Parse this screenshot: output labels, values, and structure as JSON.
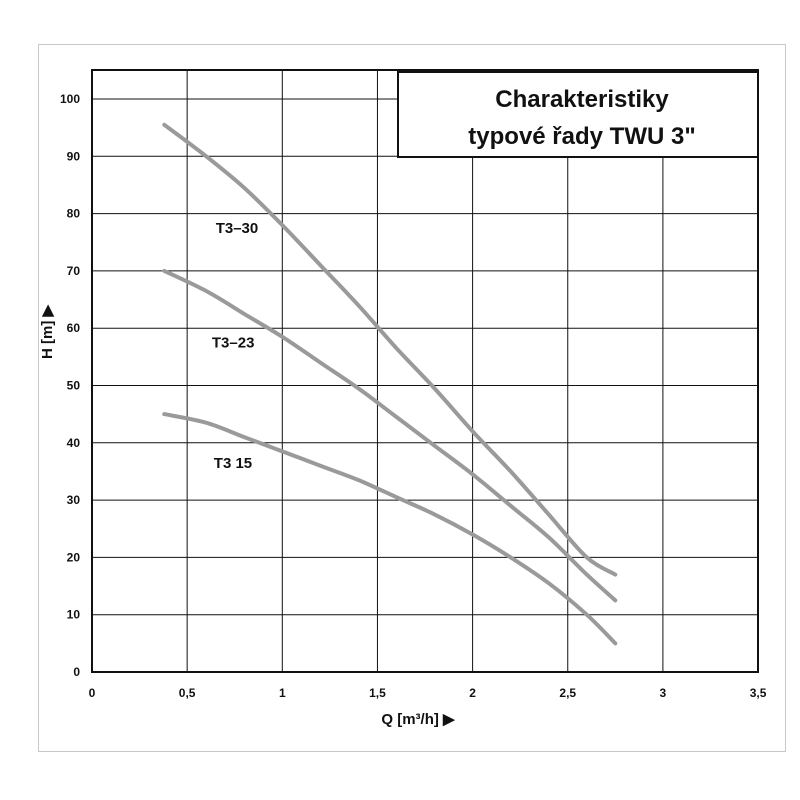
{
  "chart_data": {
    "type": "line",
    "title_lines": [
      "Charakteristiky",
      "typové řady TWU 3\""
    ],
    "xlabel": "Q [m³/h] ▶",
    "ylabel": "H [m] ▶",
    "xlim": [
      0,
      3.5
    ],
    "ylim": [
      0,
      105
    ],
    "x_ticks": [
      0,
      0.5,
      1,
      1.5,
      2,
      2.5,
      3,
      3.5
    ],
    "x_tick_labels": [
      "0",
      "0,5",
      "1",
      "1,5",
      "2",
      "2,5",
      "3",
      "3,5"
    ],
    "y_ticks": [
      0,
      10,
      20,
      30,
      40,
      50,
      60,
      70,
      80,
      90,
      100
    ],
    "y_tick_labels": [
      "0",
      "10",
      "20",
      "30",
      "40",
      "50",
      "60",
      "70",
      "80",
      "90",
      "100"
    ],
    "grid": true,
    "series": [
      {
        "name": "T3–30",
        "color": "#9a9a9a",
        "x": [
          0.38,
          0.6,
          0.8,
          1.0,
          1.2,
          1.4,
          1.6,
          1.8,
          2.0,
          2.2,
          2.4,
          2.6,
          2.75
        ],
        "y": [
          95.5,
          90,
          84.5,
          78,
          71,
          64,
          56.5,
          49.5,
          42,
          35,
          27.5,
          20,
          17
        ]
      },
      {
        "name": "T3–23",
        "color": "#9a9a9a",
        "x": [
          0.38,
          0.6,
          0.8,
          1.0,
          1.2,
          1.4,
          1.6,
          1.8,
          2.0,
          2.2,
          2.4,
          2.6,
          2.75
        ],
        "y": [
          70,
          66.5,
          62.5,
          58.5,
          54,
          49.5,
          44.5,
          39.5,
          34.5,
          29,
          23.5,
          17,
          12.5
        ]
      },
      {
        "name": "T3 15",
        "color": "#9a9a9a",
        "x": [
          0.38,
          0.6,
          0.8,
          1.0,
          1.2,
          1.4,
          1.6,
          1.8,
          2.0,
          2.2,
          2.4,
          2.6,
          2.75
        ],
        "y": [
          45,
          43.5,
          41,
          38.5,
          36,
          33.5,
          30.5,
          27.5,
          24,
          20,
          15.5,
          10,
          5
        ]
      }
    ],
    "curve_labels": [
      {
        "text": "T3–30",
        "x": 0.65,
        "y": 77.5
      },
      {
        "text": "T3–23",
        "x": 0.63,
        "y": 57.5
      },
      {
        "text": "T3 15",
        "x": 0.64,
        "y": 36.5
      }
    ]
  }
}
